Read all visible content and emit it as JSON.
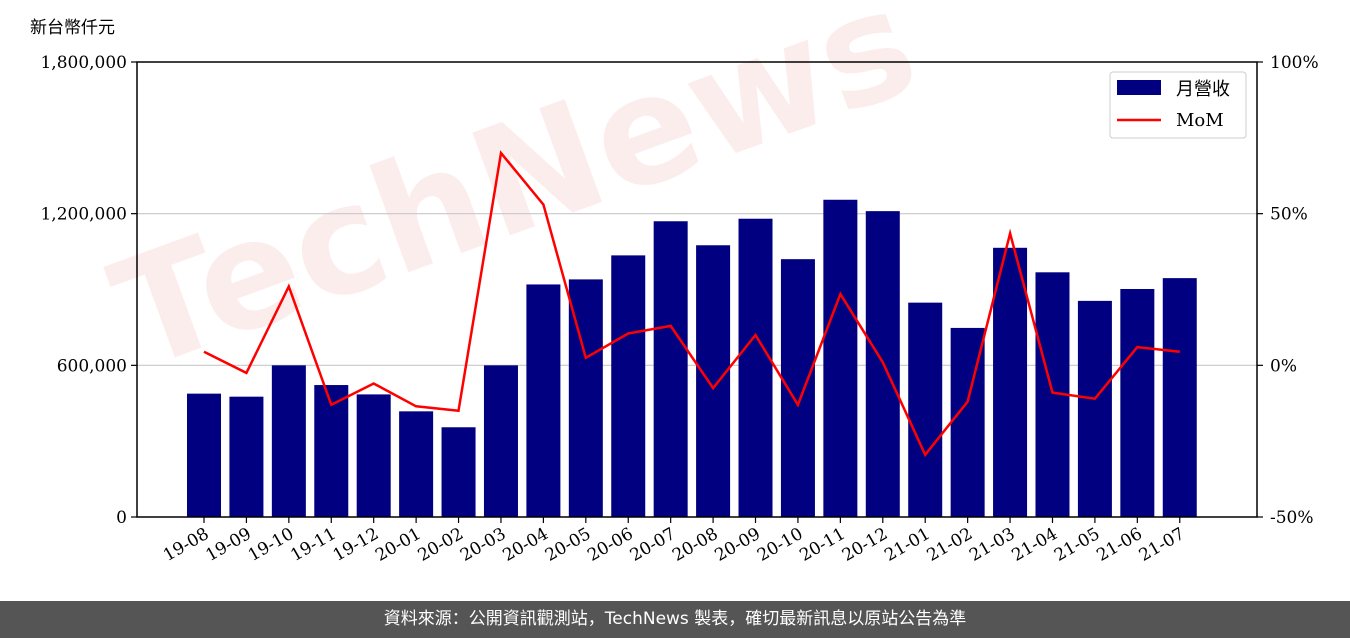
{
  "unit_label": "新台幣仟元",
  "footer_text": "資料來源：公開資訊觀測站，TechNews 製表，確切最新訊息以原站公告為準",
  "watermark_text": "TechNews",
  "colors": {
    "bar": "#000080",
    "line": "#ff0000",
    "grid": "#c8c8c8",
    "footer_bg": "#555555"
  },
  "chart_data": {
    "type": "bar",
    "categories": [
      "19-08",
      "19-09",
      "19-10",
      "19-11",
      "19-12",
      "20-01",
      "20-02",
      "20-03",
      "20-04",
      "20-05",
      "20-06",
      "20-07",
      "20-08",
      "20-09",
      "20-10",
      "20-11",
      "20-12",
      "21-01",
      "21-02",
      "21-03",
      "21-04",
      "21-05",
      "21-06",
      "21-07"
    ],
    "series": [
      {
        "name": "月營收",
        "type": "bar",
        "axis": "left",
        "values": [
          488000,
          476000,
          600000,
          522000,
          485000,
          418000,
          355000,
          600000,
          920000,
          940000,
          1035000,
          1170000,
          1075000,
          1180000,
          1020000,
          1255000,
          1210000,
          848000,
          748000,
          1065000,
          968000,
          855000,
          902000,
          945000
        ]
      },
      {
        "name": "MoM",
        "type": "line",
        "axis": "right",
        "unit": "%",
        "values": [
          4.5,
          -2.5,
          26,
          -13,
          -6,
          -13.5,
          -15,
          70,
          53,
          2.5,
          10.5,
          13,
          -7.5,
          10,
          -13,
          23.5,
          1,
          -29.5,
          -12,
          43.5,
          -9,
          -11,
          6,
          4.5
        ]
      }
    ],
    "y_left": {
      "ylim": [
        0,
        1800000
      ],
      "ticks": [
        0,
        600000,
        1200000,
        1800000
      ],
      "tick_labels": [
        "0",
        "600,000",
        "1,200,000",
        "1,800,000"
      ]
    },
    "y_right": {
      "ylim": [
        -50,
        100
      ],
      "ticks": [
        -50,
        0,
        50,
        100
      ],
      "tick_labels": [
        "-50%",
        "0%",
        "50%",
        "100%"
      ]
    },
    "grid": true,
    "legend": {
      "position": "top-right",
      "entries": [
        "月營收",
        "MoM"
      ]
    }
  }
}
